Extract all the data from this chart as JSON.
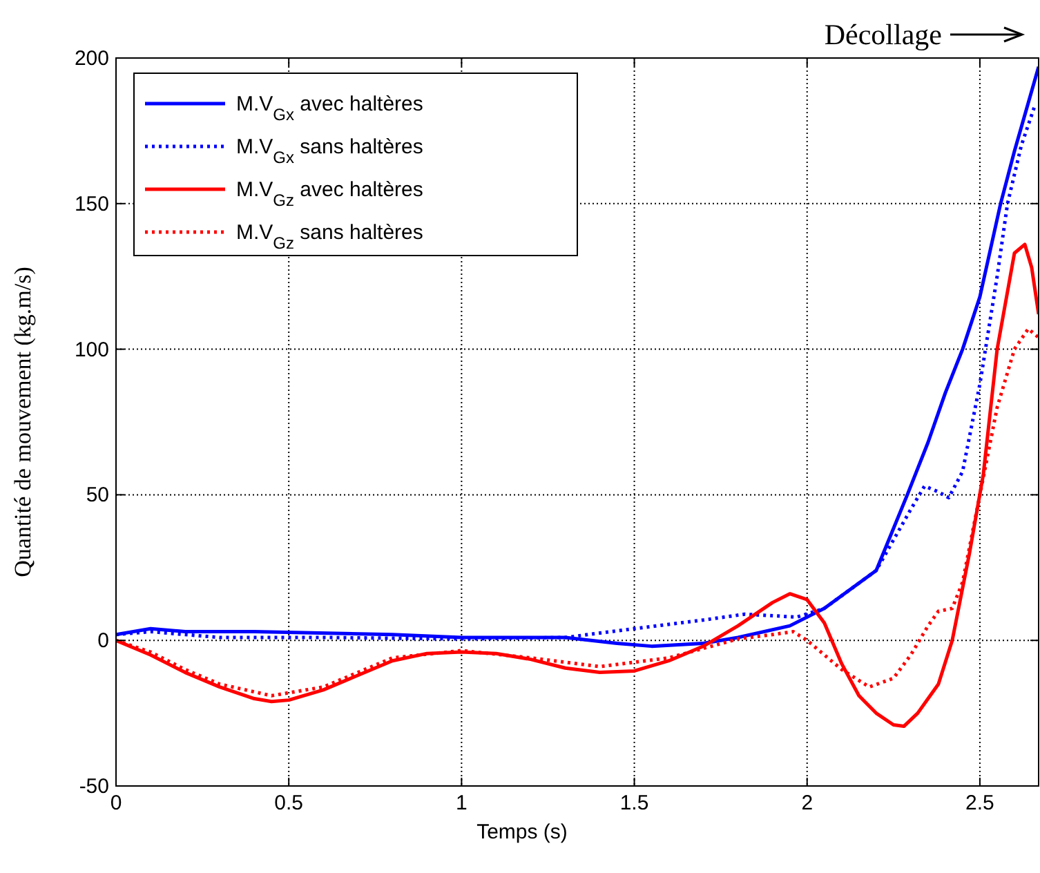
{
  "chart_data": {
    "type": "line",
    "xlabel": "Temps (s)",
    "ylabel": "Quantité de mouvement (kg.m/s)",
    "annotations": [
      "Décollage"
    ],
    "xlim": [
      0,
      2.67
    ],
    "xticks": [
      0,
      0.5,
      1,
      1.5,
      2,
      2.5
    ],
    "ylim": [
      -50,
      200
    ],
    "yticks": [
      -50,
      0,
      50,
      100,
      150,
      200
    ],
    "grid": true,
    "legend": "top left",
    "series": [
      {
        "name": "M.V$_{Gx}$ avec haltères",
        "color": "#0000ff",
        "line_style": "solid",
        "x": [
          0,
          0.1,
          0.2,
          0.4,
          0.8,
          1.0,
          1.3,
          1.45,
          1.55,
          1.7,
          1.8,
          1.95,
          2.05,
          2.2,
          2.29,
          2.35,
          2.4,
          2.45,
          2.5,
          2.56,
          2.6,
          2.67
        ],
        "values": [
          2,
          4,
          3,
          3,
          2,
          1,
          1,
          -1,
          -2,
          -1,
          1,
          5,
          11,
          24,
          50,
          68,
          85,
          100,
          118,
          150,
          168,
          197
        ]
      },
      {
        "name": "M.V$_{Gx}$ sans haltères",
        "color": "#0000ff",
        "line_style": "dotted",
        "x": [
          0,
          0.1,
          0.2,
          0.3,
          0.6,
          1.0,
          1.3,
          1.5,
          1.7,
          1.82,
          1.97,
          2.05,
          2.2,
          2.3,
          2.34,
          2.38,
          2.41,
          2.45,
          2.5,
          2.55,
          2.58,
          2.62,
          2.66
        ],
        "values": [
          2,
          3,
          2,
          1,
          1,
          0.5,
          1,
          4,
          7,
          9,
          8,
          11,
          24,
          45,
          53,
          51,
          49,
          58,
          88,
          125,
          150,
          170,
          184
        ]
      },
      {
        "name": "M.V$_{Gz}$ avec haltères",
        "color": "#ff0000",
        "line_style": "solid",
        "x": [
          0,
          0.1,
          0.2,
          0.3,
          0.4,
          0.45,
          0.5,
          0.6,
          0.7,
          0.8,
          0.9,
          1.0,
          1.1,
          1.2,
          1.3,
          1.4,
          1.5,
          1.6,
          1.7,
          1.8,
          1.9,
          1.95,
          2.0,
          2.05,
          2.1,
          2.15,
          2.2,
          2.25,
          2.28,
          2.32,
          2.38,
          2.42,
          2.47,
          2.51,
          2.55,
          2.6,
          2.63,
          2.65,
          2.67
        ],
        "values": [
          0,
          -5,
          -11,
          -16,
          -20,
          -21,
          -20.5,
          -17,
          -12,
          -7,
          -4.5,
          -4,
          -4.5,
          -6.5,
          -9.5,
          -11,
          -10.5,
          -7,
          -2,
          5,
          13,
          16,
          14,
          6,
          -8,
          -19,
          -25,
          -29,
          -29.5,
          -25,
          -15,
          0,
          30,
          57,
          100,
          133,
          136,
          128,
          112
        ]
      },
      {
        "name": "M.V$_{Gz}$ sans haltères",
        "color": "#ff0000",
        "line_style": "dotted",
        "x": [
          0,
          0.1,
          0.2,
          0.3,
          0.45,
          0.6,
          0.8,
          1.0,
          1.2,
          1.4,
          1.6,
          1.8,
          1.9,
          1.96,
          2.0,
          2.05,
          2.1,
          2.18,
          2.25,
          2.3,
          2.35,
          2.38,
          2.42,
          2.45,
          2.5,
          2.55,
          2.6,
          2.64,
          2.67
        ],
        "values": [
          0,
          -4,
          -10,
          -15,
          -19,
          -16,
          -6,
          -3.5,
          -6,
          -9,
          -6,
          0.5,
          2,
          3,
          0,
          -5,
          -10,
          -16,
          -13,
          -5,
          5,
          10,
          11,
          20,
          50,
          80,
          100,
          107,
          104
        ]
      }
    ]
  }
}
